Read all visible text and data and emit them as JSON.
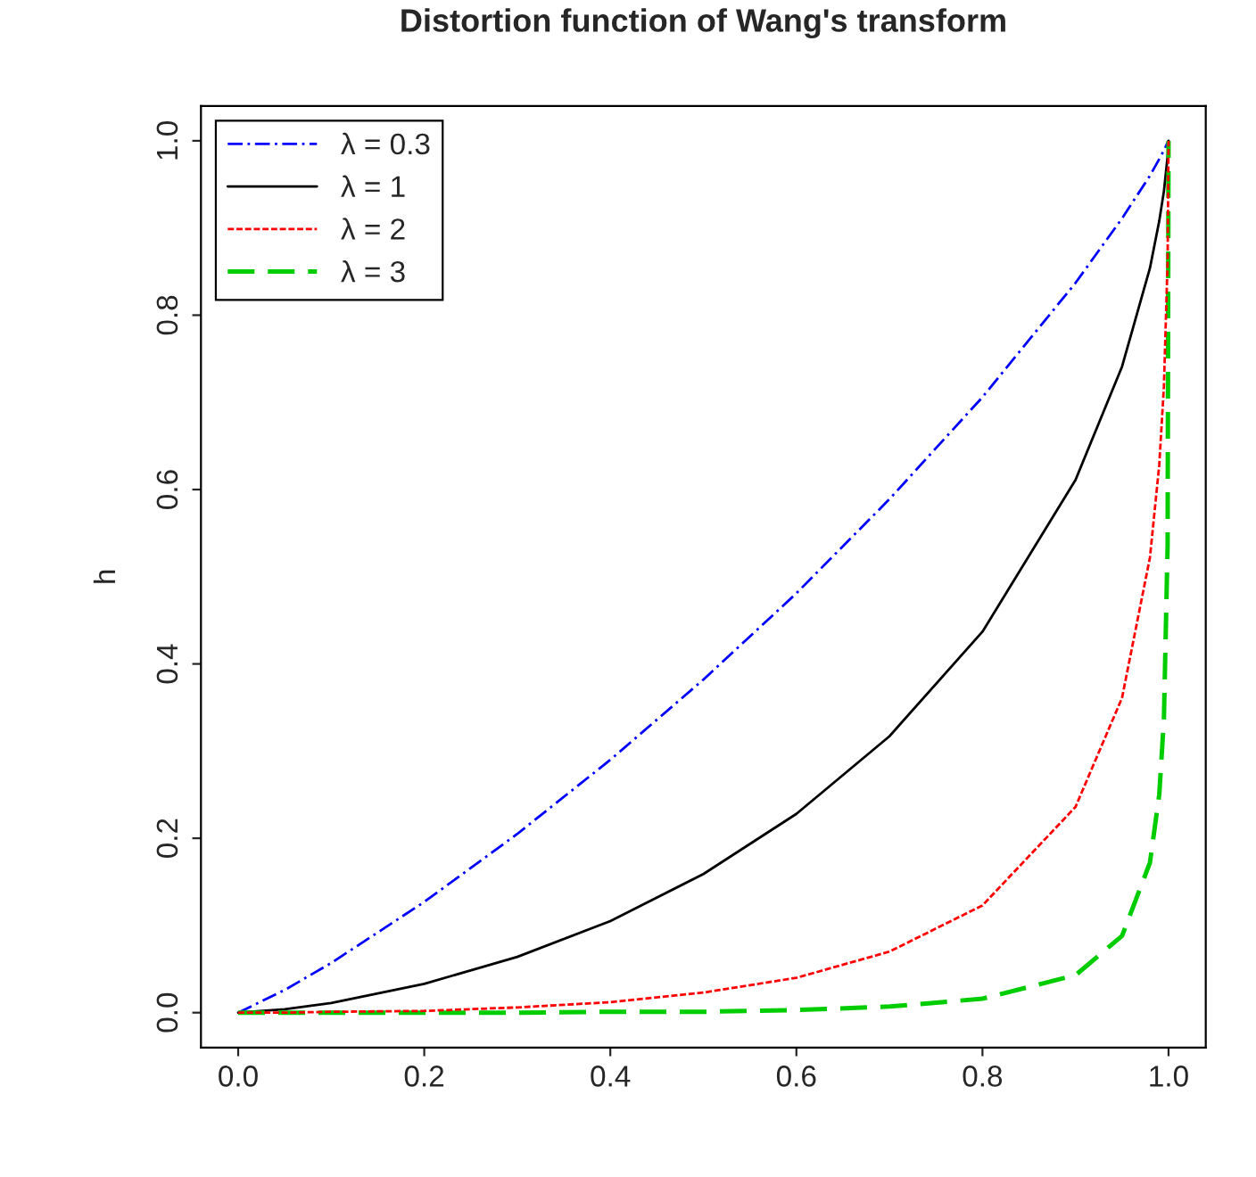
{
  "chart_data": {
    "type": "line",
    "title": "Distortion function of Wang's transform",
    "ylabel": "h",
    "x": [
      0,
      0.05,
      0.1,
      0.2,
      0.3,
      0.4,
      0.5,
      0.6,
      0.7,
      0.8,
      0.9,
      0.95,
      0.98,
      0.99,
      0.995,
      0.999,
      1
    ],
    "series": [
      {
        "name": "λ = 0.3",
        "color": "#0000ff",
        "line_style": "dashdot",
        "values": [
          0,
          0.026,
          0.057,
          0.127,
          0.205,
          0.29,
          0.382,
          0.481,
          0.589,
          0.706,
          0.837,
          0.911,
          0.96,
          0.979,
          0.989,
          0.998,
          1
        ]
      },
      {
        "name": "λ = 1",
        "color": "#000000",
        "line_style": "solid",
        "values": [
          0,
          0.004,
          0.011,
          0.033,
          0.064,
          0.105,
          0.159,
          0.228,
          0.317,
          0.437,
          0.611,
          0.741,
          0.854,
          0.908,
          0.942,
          0.982,
          1
        ]
      },
      {
        "name": "λ = 2",
        "color": "#ff0000",
        "line_style": "dotted",
        "values": [
          0,
          0,
          0.001,
          0.002,
          0.006,
          0.012,
          0.023,
          0.04,
          0.07,
          0.123,
          0.236,
          0.361,
          0.522,
          0.628,
          0.718,
          0.862,
          1
        ]
      },
      {
        "name": "λ = 3",
        "color": "#00cd00",
        "line_style": "dashed",
        "values": [
          0,
          0,
          0,
          0,
          0,
          0.001,
          0.001,
          0.003,
          0.007,
          0.016,
          0.043,
          0.088,
          0.172,
          0.25,
          0.336,
          0.536,
          1
        ]
      }
    ],
    "xlim": [
      -0.04,
      1.04
    ],
    "ylim": [
      -0.04,
      1.04
    ],
    "xticks": [
      {
        "value": 0,
        "label": "0.0"
      },
      0.2,
      0.4,
      0.6,
      0.8,
      {
        "value": 1,
        "label": "1.0"
      }
    ],
    "yticks": [
      {
        "value": 0,
        "label": "0.0"
      },
      0.2,
      0.4,
      0.6,
      0.8,
      {
        "value": 1,
        "label": "1.0"
      }
    ],
    "legend": "top left",
    "grid": false
  }
}
